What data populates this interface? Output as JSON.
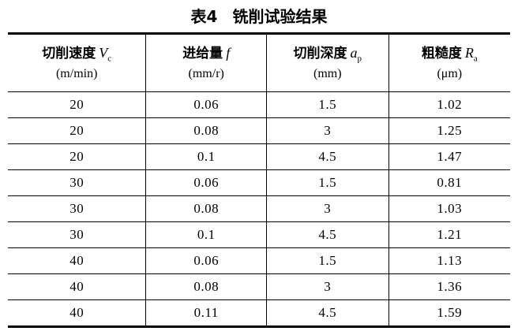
{
  "page": {
    "title": {
      "label": "表4",
      "text": "铣削试验结果"
    }
  },
  "table": {
    "columns": [
      {
        "name": "切削速度",
        "symbol": "V",
        "subscript": "c",
        "unit": "(m/min)"
      },
      {
        "name": "进给量",
        "symbol": "f",
        "subscript": "",
        "unit": "(mm/r)"
      },
      {
        "name": "切削深度",
        "symbol": "a",
        "subscript": "p",
        "unit": "(mm)"
      },
      {
        "name": "粗糙度",
        "symbol": "R",
        "subscript": "a",
        "unit": "(μm)"
      }
    ],
    "rows": [
      [
        "20",
        "0.06",
        "1.5",
        "1.02"
      ],
      [
        "20",
        "0.08",
        "3",
        "1.25"
      ],
      [
        "20",
        "0.1",
        "4.5",
        "1.47"
      ],
      [
        "30",
        "0.06",
        "1.5",
        "0.81"
      ],
      [
        "30",
        "0.08",
        "3",
        "1.03"
      ],
      [
        "30",
        "0.1",
        "4.5",
        "1.21"
      ],
      [
        "40",
        "0.06",
        "1.5",
        "1.13"
      ],
      [
        "40",
        "0.08",
        "3",
        "1.36"
      ],
      [
        "40",
        "0.11",
        "4.5",
        "1.59"
      ]
    ]
  }
}
